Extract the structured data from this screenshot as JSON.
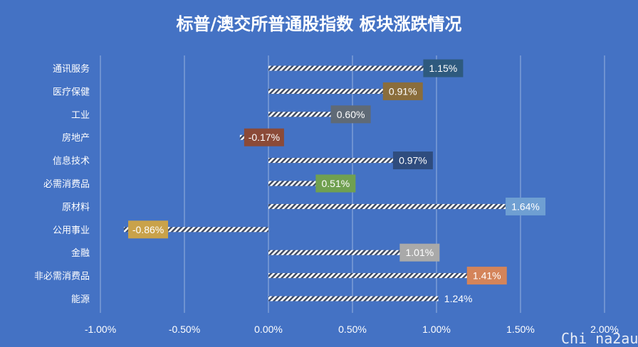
{
  "title": "标普/澳交所普通股指数 板块涨跌情况",
  "watermark": "Chi na2au",
  "chart_data": {
    "type": "bar",
    "orientation": "horizontal",
    "categories": [
      "通讯服务",
      "医疗保健",
      "工业",
      "房地产",
      "信息技术",
      "必需消费品",
      "原材料",
      "公用事业",
      "金融",
      "非必需消费品",
      "能源"
    ],
    "values": [
      1.15,
      0.91,
      0.6,
      -0.17,
      0.97,
      0.51,
      1.64,
      -0.86,
      1.01,
      1.41,
      1.24
    ],
    "value_labels": [
      "1.15%",
      "0.91%",
      "0.60%",
      "-0.17%",
      "0.97%",
      "0.51%",
      "1.64%",
      "-0.86%",
      "1.01%",
      "1.41%",
      "1.24%"
    ],
    "label_colors": [
      "#2E5A7E",
      "#8A6D3B",
      "#5F6A76",
      "#8B4A38",
      "#2F4C7E",
      "#70A050",
      "#6F9FD2",
      "#C9A24A",
      "#A9A9A9",
      "#D4845A",
      "#4472C4"
    ],
    "xlim": [
      -1.0,
      2.0
    ],
    "xticks": [
      -1.0,
      -0.5,
      0.0,
      0.5,
      1.0,
      1.5,
      2.0
    ],
    "xtick_labels": [
      "-1.00%",
      "-0.50%",
      "0.00%",
      "0.50%",
      "1.00%",
      "1.50%",
      "2.00%"
    ],
    "grid": true,
    "bar_pattern": "diagonal-hatch"
  }
}
